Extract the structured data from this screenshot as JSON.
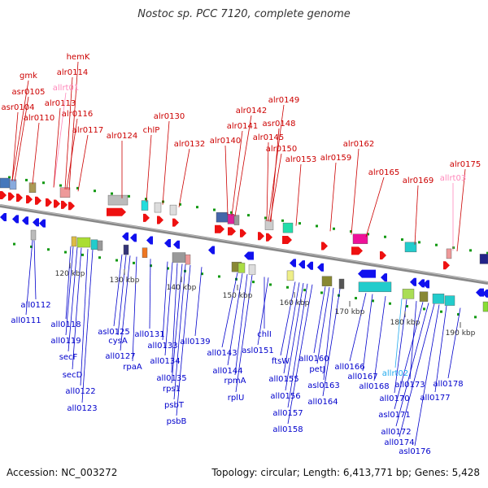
{
  "title": "Nostoc sp. PCC 7120, complete genome",
  "accession": "Accession: NC_003272",
  "summary": "Topology: circular; Length: 6,413,771 bp; Genes: 5,428",
  "colors": {
    "forward_label": "#cc0000",
    "reverse_label": "#0000cc",
    "trna_forward": "#ff88bb",
    "trna_reverse": "#22aaee",
    "backbone": "#888888",
    "tick_dots": "#119911"
  },
  "kbp_ticks": [
    "120 kbp",
    "130 kbp",
    "140 kbp",
    "150 kbp",
    "160 kbp",
    "170 kbp",
    "180 kbp",
    "190 kbp"
  ],
  "forward_genes": [
    "gmk",
    "asr0105",
    "asr0104",
    "alr0110",
    "hemK",
    "alr0114",
    "allrt01",
    "alr0113",
    "alr0116",
    "alr0117",
    "alr0124",
    "chlP",
    "alr0130",
    "alr0132",
    "alr0142",
    "alr0141",
    "alr0140",
    "alr0149",
    "asr0148",
    "alr0145",
    "alr0150",
    "alr0153",
    "alr0159",
    "alr0162",
    "alr0165",
    "alr0169",
    "allrt03",
    "alr0175"
  ],
  "reverse_genes": [
    "all0112",
    "all0111",
    "all0118",
    "all0119",
    "secF",
    "secD",
    "all0122",
    "all0123",
    "asl0125",
    "cysA",
    "all0127",
    "rpaA",
    "all0131",
    "all0133",
    "all0134",
    "all0135",
    "rps1",
    "psbT",
    "psbB",
    "all0139",
    "all0143",
    "all0144",
    "rpmA",
    "rplU",
    "chlI",
    "asl0151",
    "ftsW",
    "all0155",
    "all0156",
    "all0157",
    "all0158",
    "all0160",
    "petJ",
    "asl0163",
    "all0164",
    "all0166",
    "all0167",
    "all0168",
    "allrt02",
    "all0170",
    "all0173",
    "asl0171",
    "all0172",
    "all0174",
    "asl0176",
    "all0177",
    "all0178"
  ]
}
